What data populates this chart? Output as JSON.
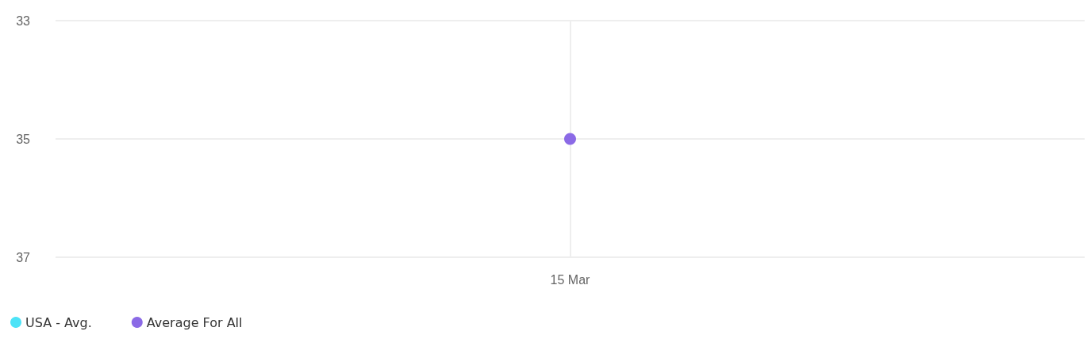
{
  "chart_data": {
    "type": "line",
    "categories": [
      "15 Mar"
    ],
    "series": [
      {
        "name": "USA - Avg.",
        "color": "#4de3f7",
        "values": [
          null
        ]
      },
      {
        "name": "Average For All",
        "color": "#8b6ae6",
        "values": [
          35
        ]
      }
    ],
    "ylim": [
      37,
      33
    ],
    "yticks": [
      33,
      35,
      37
    ],
    "grid": true,
    "legend": "bottom left",
    "marker": "circle"
  }
}
